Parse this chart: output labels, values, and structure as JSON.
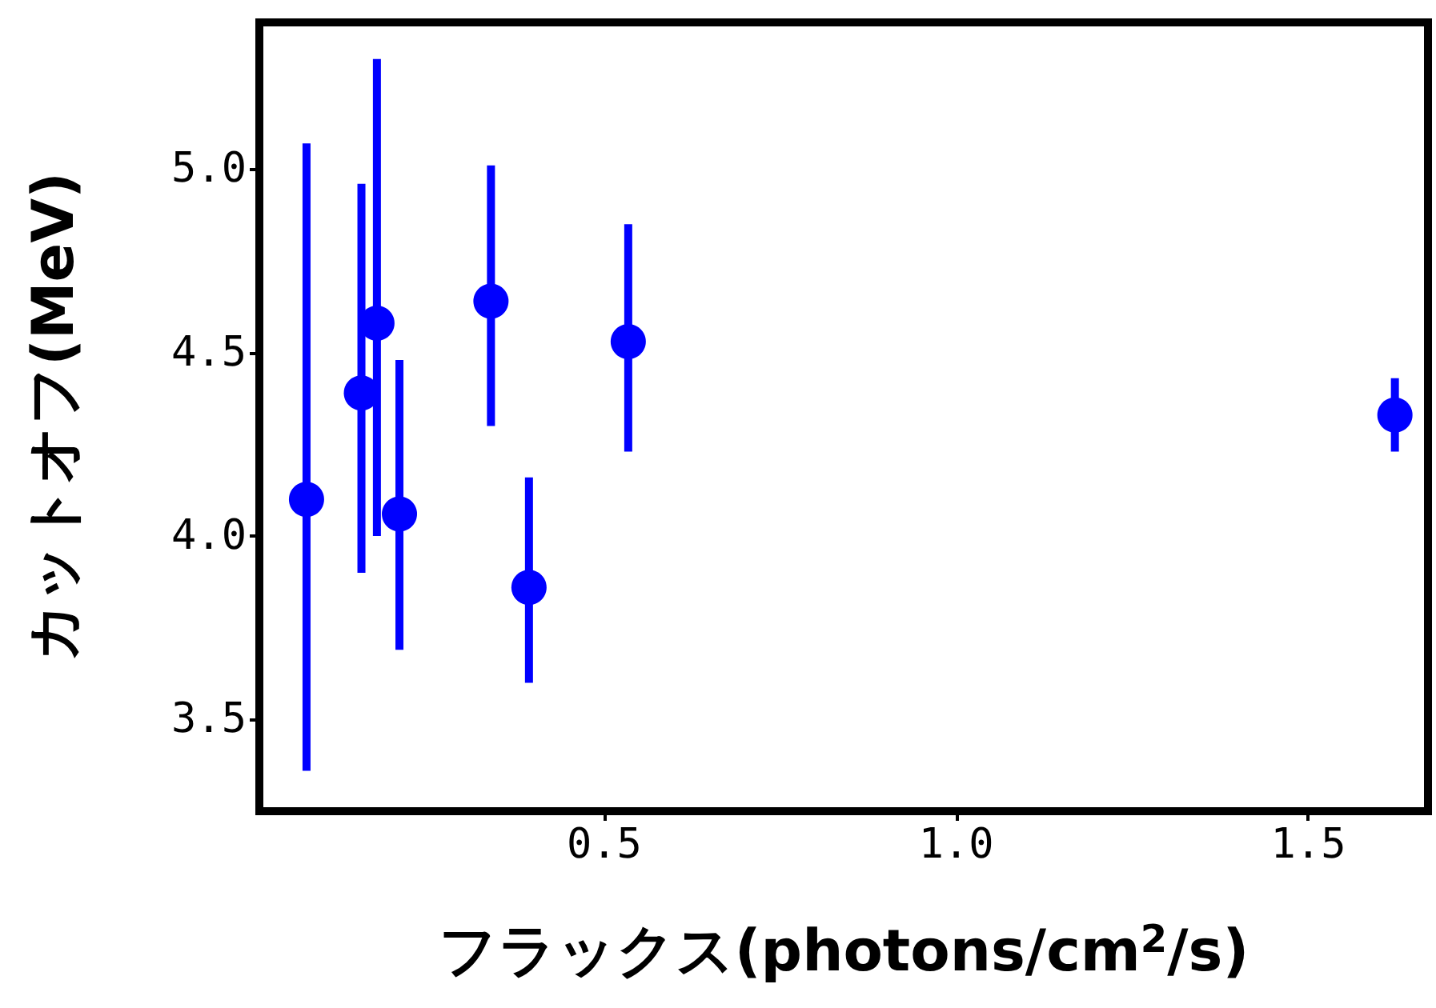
{
  "chart_data": {
    "type": "scatter",
    "xlabel": "フラックス(photons/cm$^{2}$/s)",
    "ylabel": "カットオフ(MeV)",
    "x": [
      0.077,
      0.155,
      0.177,
      0.209,
      0.339,
      0.393,
      0.534,
      1.623
    ],
    "values": [
      4.1,
      4.39,
      4.58,
      4.06,
      4.64,
      3.86,
      4.53,
      4.33
    ],
    "errors": [
      [
        3.36,
        5.07
      ],
      [
        3.9,
        4.96
      ],
      [
        4.0,
        5.3
      ],
      [
        3.69,
        4.48
      ],
      [
        4.3,
        5.01
      ],
      [
        3.6,
        4.16
      ],
      [
        4.23,
        4.85
      ],
      [
        4.23,
        4.43
      ]
    ],
    "color": "#0000ff",
    "marker": "circle",
    "grid": false,
    "xlim": [
      0.01,
      1.67
    ],
    "xticks": [
      0.5,
      {
        "value": 1,
        "label": "1.0"
      },
      1.5
    ],
    "ylim": [
      3.25,
      5.4
    ],
    "yticks": [
      3.5,
      {
        "value": 4,
        "label": "4.0"
      },
      4.5,
      {
        "value": 5,
        "label": "5.0"
      }
    ]
  }
}
